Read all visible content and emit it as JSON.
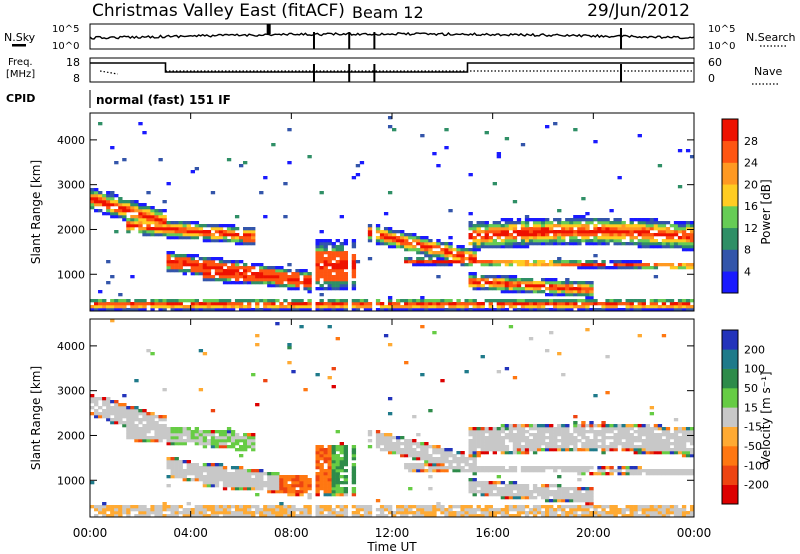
{
  "header": {
    "title": "Christmas Valley East (fitACF)",
    "beam": "Beam 12",
    "date": "29/Jun/2012"
  },
  "status_panels": {
    "nsky_label": "N.Sky",
    "nsearch_label": "N.Search",
    "nsky_ticks": [
      "10^5",
      "10^0"
    ],
    "nsearch_ticks": [
      "10^5",
      "10^0"
    ],
    "freq_label_1": "Freq.",
    "freq_label_2": "[MHz]",
    "freq_ticks": [
      "18",
      "8"
    ],
    "nave_label": "Nave",
    "nave_ticks": [
      "60",
      "0"
    ],
    "cpid_label": "CPID",
    "cpid_value": "normal (fast) 151 IF"
  },
  "chart_data": [
    {
      "type": "heatmap",
      "panel": "power",
      "ylabel": "Slant Range [km]",
      "yticks": [
        1000,
        2000,
        3000,
        4000
      ],
      "ylim": [
        180,
        4600
      ],
      "colorbar_label": "Power [dB]",
      "colorbar_ticks": [
        4,
        8,
        12,
        16,
        20,
        24,
        28
      ],
      "colorbar_colors": [
        "#1a1aff",
        "#3355aa",
        "#2f8f66",
        "#66cc55",
        "#ffcc22",
        "#ff9922",
        "#ff5511",
        "#ee1100"
      ]
    },
    {
      "type": "heatmap",
      "panel": "velocity",
      "ylabel": "Slant Range [km]",
      "yticks": [
        1000,
        2000,
        3000,
        4000
      ],
      "ylim": [
        180,
        4600
      ],
      "colorbar_label": "Velocity [m s⁻¹]",
      "colorbar_ticks": [
        200,
        100,
        50,
        15,
        -15,
        -50,
        -100,
        -200
      ],
      "colorbar_colors": [
        "#2233bb",
        "#1f7a8a",
        "#2e8b4a",
        "#66cc44",
        "#c8c8c8",
        "#ffaa33",
        "#ff7711",
        "#ee4411",
        "#dd0000"
      ]
    }
  ],
  "xaxis": {
    "label": "Time UT",
    "ticks": [
      "00:00",
      "04:00",
      "08:00",
      "12:00",
      "16:00",
      "20:00",
      "00:00"
    ],
    "xlim_hours": [
      0,
      24
    ]
  }
}
